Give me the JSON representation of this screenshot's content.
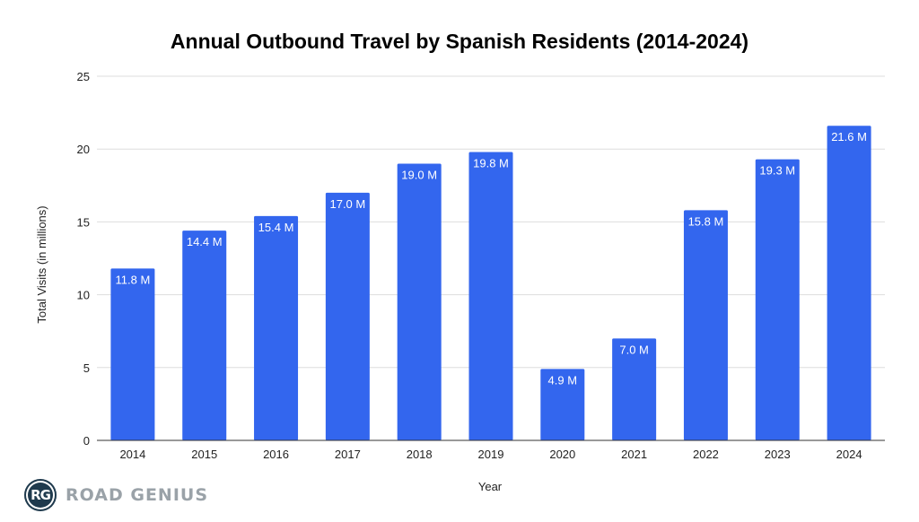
{
  "chart_data": {
    "type": "bar",
    "title": "Annual Outbound Travel by Spanish Residents (2014-2024)",
    "xlabel": "Year",
    "ylabel": "Total Visits (in millions)",
    "categories": [
      "2014",
      "2015",
      "2016",
      "2017",
      "2018",
      "2019",
      "2020",
      "2021",
      "2022",
      "2023",
      "2024"
    ],
    "values": [
      11.8,
      14.4,
      15.4,
      17.0,
      19.0,
      19.8,
      4.9,
      7.0,
      15.8,
      19.3,
      21.6
    ],
    "data_labels": [
      "11.8 M",
      "14.4 M",
      "15.4 M",
      "17.0 M",
      "19.0 M",
      "19.8 M",
      "4.9 M",
      "7.0 M",
      "15.8 M",
      "19.3 M",
      "21.6 M"
    ],
    "ylim": [
      0,
      25
    ],
    "yticks": [
      0,
      5,
      10,
      15,
      20,
      25
    ],
    "grid": true,
    "legend": "none",
    "bar_color": "#3366ee"
  },
  "branding": {
    "logo_initials": "RG",
    "logo_text": "ROAD GENIUS"
  }
}
